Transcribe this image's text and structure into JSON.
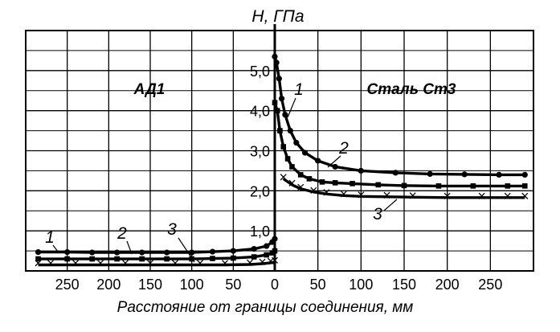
{
  "chart_data": {
    "type": "line",
    "title": "",
    "ylabel": "H, ГПа",
    "xlabel": "Расстояние от границы соединения, мм",
    "ylim": [
      0,
      6.0
    ],
    "grid": true,
    "y_ticks": [
      {
        "value": 1.0,
        "label": "1,0"
      },
      {
        "value": 2.0,
        "label": "2,0"
      },
      {
        "value": 3.0,
        "label": "3,0"
      },
      {
        "value": 4.0,
        "label": "4,0"
      },
      {
        "value": 5.0,
        "label": "5,0"
      }
    ],
    "x_ticks_left": [
      {
        "value": 250,
        "label": "250"
      },
      {
        "value": 200,
        "label": "200"
      },
      {
        "value": 150,
        "label": "150"
      },
      {
        "value": 100,
        "label": "100"
      },
      {
        "value": 50,
        "label": "50"
      },
      {
        "value": 0,
        "label": "0"
      }
    ],
    "x_ticks_right": [
      {
        "value": 50,
        "label": "50"
      },
      {
        "value": 100,
        "label": "100"
      },
      {
        "value": 150,
        "label": "150"
      },
      {
        "value": 200,
        "label": "200"
      },
      {
        "value": 250,
        "label": "250"
      }
    ],
    "regions": [
      {
        "name": "АД1",
        "series": [
          {
            "label": "1",
            "marker": "circle",
            "x": [
              0,
              3,
              10,
              25,
              50,
              75,
              100,
              130,
              160,
              190,
              220,
              250,
              285
            ],
            "y": [
              0.8,
              0.72,
              0.62,
              0.55,
              0.5,
              0.48,
              0.46,
              0.46,
              0.46,
              0.46,
              0.46,
              0.47,
              0.47
            ]
          },
          {
            "label": "2",
            "marker": "square",
            "x": [
              0,
              3,
              10,
              25,
              50,
              75,
              100,
              130,
              160,
              190,
              220,
              250,
              285
            ],
            "y": [
              0.5,
              0.45,
              0.4,
              0.35,
              0.32,
              0.31,
              0.3,
              0.3,
              0.3,
              0.3,
              0.3,
              0.3,
              0.3
            ]
          },
          {
            "label": "3",
            "marker": "x",
            "x": [
              0,
              5,
              15,
              30,
              60,
              90,
              120,
              150,
              180,
              210,
              240,
              270,
              285
            ],
            "y": [
              0.22,
              0.2,
              0.18,
              0.16,
              0.15,
              0.15,
              0.15,
              0.15,
              0.15,
              0.15,
              0.15,
              0.15,
              0.15
            ]
          }
        ]
      },
      {
        "name": "Сталь Ст3",
        "series": [
          {
            "label": "1",
            "marker": "circle",
            "x": [
              0,
              2,
              5,
              8,
              12,
              18,
              25,
              35,
              50,
              70,
              100,
              140,
              180,
              220,
              260,
              290
            ],
            "y": [
              5.35,
              5.2,
              4.8,
              4.3,
              3.9,
              3.5,
              3.2,
              2.95,
              2.75,
              2.6,
              2.5,
              2.45,
              2.42,
              2.41,
              2.4,
              2.4
            ]
          },
          {
            "label": "2",
            "marker": "square",
            "x": [
              0,
              3,
              6,
              10,
              15,
              20,
              30,
              40,
              55,
              70,
              90,
              120,
              150,
              190,
              230,
              270,
              290
            ],
            "y": [
              4.2,
              4.0,
              3.5,
              3.1,
              2.8,
              2.6,
              2.4,
              2.3,
              2.22,
              2.2,
              2.18,
              2.15,
              2.13,
              2.12,
              2.12,
              2.12,
              2.12
            ]
          },
          {
            "label": "3",
            "marker": "x",
            "x": [
              10,
              20,
              30,
              45,
              60,
              80,
              100,
              130,
              160,
              200,
              240,
              270,
              290
            ],
            "y": [
              2.3,
              2.15,
              2.05,
              1.97,
              1.92,
              1.88,
              1.86,
              1.85,
              1.84,
              1.83,
              1.83,
              1.83,
              1.83
            ]
          }
        ]
      }
    ]
  }
}
